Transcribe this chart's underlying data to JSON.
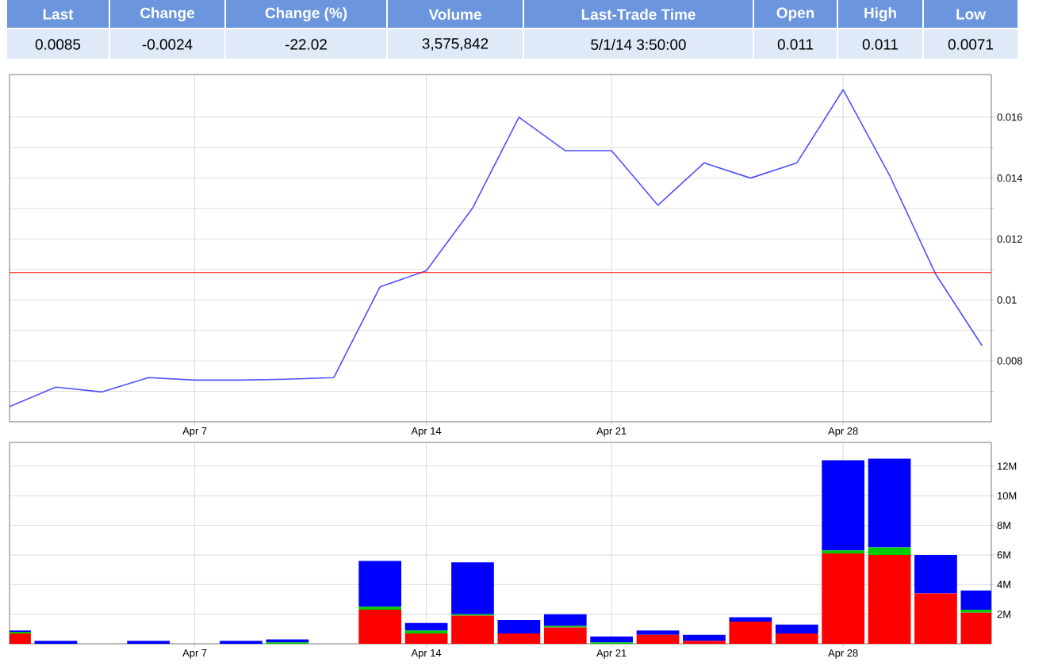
{
  "chart_data": [
    {
      "type": "other",
      "annotations": [
        "Last",
        "Change",
        "Change (%)",
        "Volume",
        "Last-Trade Time",
        "Open",
        "High",
        "Low"
      ],
      "categories": [
        "0.0085",
        "-0.0024",
        "-22.02",
        "3,575,842",
        "5/1/14 3:50:00",
        "0.011",
        "0.011",
        "0.0071"
      ]
    },
    {
      "type": "line",
      "categories": [
        null,
        null,
        null,
        null,
        "Apr 7",
        null,
        null,
        null,
        null,
        "Apr 14",
        null,
        null,
        null,
        "Apr 21",
        null,
        null,
        null,
        null,
        "Apr 28",
        null,
        null,
        null
      ],
      "values": [
        0.0065,
        0.00714,
        0.00698,
        0.00745,
        0.00737,
        0.00737,
        0.0074,
        0.00745,
        0.01043,
        0.01096,
        0.01302,
        0.016,
        0.0149,
        0.0149,
        0.01311,
        0.0145,
        0.014,
        0.0145,
        0.0169,
        0.0141,
        0.01084,
        0.0085
      ],
      "color": "#5050ff",
      "ylim": [
        0.006,
        0.0174
      ],
      "yticks": [
        {
          "value": 0.007,
          "label": null
        },
        0.008,
        {
          "value": 0.009,
          "label": null
        },
        0.01,
        {
          "value": 0.011,
          "label": null
        },
        0.012,
        {
          "value": 0.013,
          "label": null
        },
        0.014,
        {
          "value": 0.015,
          "label": null
        },
        0.016
      ],
      "grid": true,
      "ref_lines": [
        {
          "axis": "y",
          "value": 0.0109,
          "color": "#ff0000"
        }
      ]
    },
    {
      "type": "bar",
      "stacked": true,
      "categories": [
        null,
        null,
        null,
        null,
        "Apr 7",
        null,
        null,
        null,
        null,
        "Apr 14",
        null,
        null,
        null,
        "Apr 21",
        null,
        null,
        null,
        null,
        "Apr 28",
        null,
        null,
        null
      ],
      "series": [
        {
          "color": "#ff0000",
          "values": [
            0.7,
            0,
            0,
            0,
            0,
            0,
            0,
            0,
            2.3,
            0.7,
            1.9,
            0.7,
            1.1,
            0,
            0.6,
            0.2,
            1.5,
            0.7,
            6.1,
            6.0,
            3.4,
            2.1
          ]
        },
        {
          "color": "#00cc00",
          "values": [
            0.1,
            0,
            0,
            0,
            0,
            0,
            0.1,
            0,
            0.2,
            0.2,
            0.1,
            0,
            0.1,
            0.1,
            0,
            0,
            0,
            0,
            0.2,
            0.5,
            0,
            0.2
          ]
        },
        {
          "color": "#0000ff",
          "values": [
            0.1,
            0.2,
            0,
            0.2,
            0,
            0.2,
            0.2,
            0,
            3.1,
            0.5,
            3.5,
            0.9,
            0.8,
            0.4,
            0.3,
            0.4,
            0.3,
            0.6,
            6.1,
            6.0,
            2.6,
            1.3
          ]
        }
      ],
      "ylim": [
        0,
        13.6
      ],
      "yticks": [
        {
          "value": 2,
          "label": "2M"
        },
        {
          "value": 4,
          "label": "4M"
        },
        {
          "value": 6,
          "label": "6M"
        },
        {
          "value": 8,
          "label": "8M"
        },
        {
          "value": 10,
          "label": "10M"
        },
        {
          "value": 12,
          "label": "12M"
        }
      ],
      "grid": true
    }
  ]
}
